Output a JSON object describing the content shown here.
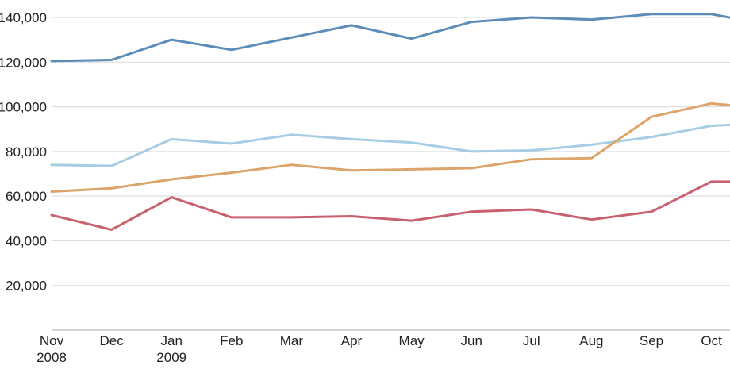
{
  "chart_data": {
    "type": "line",
    "title": "",
    "xlabel": "",
    "ylabel": "",
    "x_ticks": [
      {
        "month": "Nov",
        "year": "2008"
      },
      {
        "month": "Dec",
        "year": ""
      },
      {
        "month": "Jan",
        "year": "2009"
      },
      {
        "month": "Feb",
        "year": ""
      },
      {
        "month": "Mar",
        "year": ""
      },
      {
        "month": "Apr",
        "year": ""
      },
      {
        "month": "May",
        "year": ""
      },
      {
        "month": "Jun",
        "year": ""
      },
      {
        "month": "Jul",
        "year": ""
      },
      {
        "month": "Aug",
        "year": ""
      },
      {
        "month": "Sep",
        "year": ""
      },
      {
        "month": "Oct",
        "year": ""
      }
    ],
    "y_ticks": [
      {
        "value": 20000,
        "label": "20,000"
      },
      {
        "value": 40000,
        "label": "40,000"
      },
      {
        "value": 60000,
        "label": "60,000"
      },
      {
        "value": 80000,
        "label": "80,000"
      },
      {
        "value": 100000,
        "label": "100,000"
      },
      {
        "value": 120000,
        "label": "120,000"
      },
      {
        "value": 140000,
        "label": "140,000"
      }
    ],
    "ylim": [
      0,
      140000
    ],
    "grid": true,
    "legend": "none",
    "series": [
      {
        "color": "#5b8db8",
        "x": [
          0,
          1,
          2,
          3,
          4,
          5,
          6,
          7,
          8,
          9,
          10,
          11,
          11.4
        ],
        "values": [
          120500,
          121000,
          130000,
          125500,
          131000,
          136500,
          130500,
          138000,
          140000,
          139000,
          141500,
          141500,
          139500
        ]
      },
      {
        "color": "#a6cde3",
        "x": [
          0,
          1,
          2,
          3,
          4,
          5,
          6,
          7,
          8,
          9,
          10,
          11,
          11.4
        ],
        "values": [
          74000,
          73500,
          85500,
          83500,
          87500,
          85500,
          84000,
          80000,
          80500,
          83000,
          86500,
          91500,
          92000
        ]
      },
      {
        "color": "#dca46a",
        "x": [
          0,
          1,
          2,
          3,
          4,
          5,
          6,
          7,
          8,
          9,
          10,
          11,
          11.4
        ],
        "values": [
          62000,
          63500,
          67500,
          70500,
          74000,
          71500,
          72000,
          72500,
          76500,
          77000,
          95500,
          101500,
          100500
        ]
      },
      {
        "color": "#c9606e",
        "x": [
          0,
          1,
          2,
          3,
          4,
          5,
          6,
          7,
          8,
          9,
          10,
          11,
          11.4
        ],
        "values": [
          51500,
          45000,
          59500,
          50500,
          50500,
          51000,
          49000,
          53000,
          54000,
          49500,
          53000,
          66500,
          66500
        ]
      }
    ]
  }
}
